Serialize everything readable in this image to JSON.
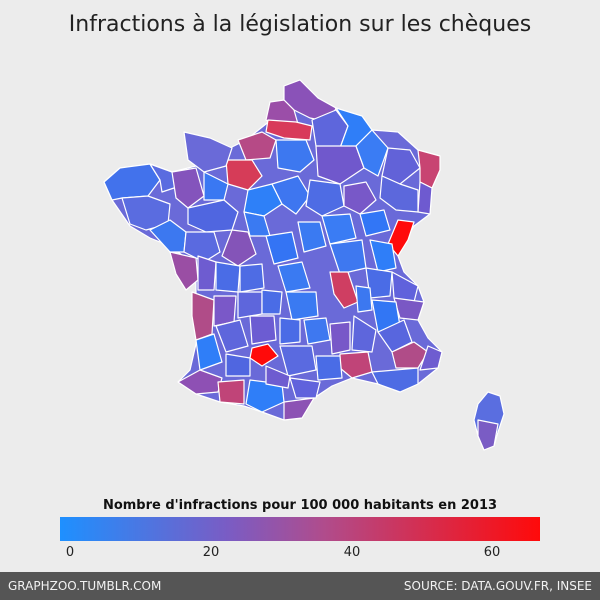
{
  "title": "Infractions à la législation sur les chèques",
  "legend": {
    "title": "Nombre d'infractions pour 100 000 habitants en 2013",
    "ticks": [
      "0",
      "20",
      "40",
      "60"
    ],
    "tick_values": [
      0,
      20,
      40,
      60
    ],
    "range": [
      0,
      67
    ],
    "colors": [
      "#1e90ff",
      "#7a5cc4",
      "#b04c8c",
      "#ff0a0a"
    ]
  },
  "footer": {
    "left": "GRAPHZOO.TUMBLR.COM",
    "right": "SOURCE: DATA.GOUV.FR, INSEE"
  }
}
